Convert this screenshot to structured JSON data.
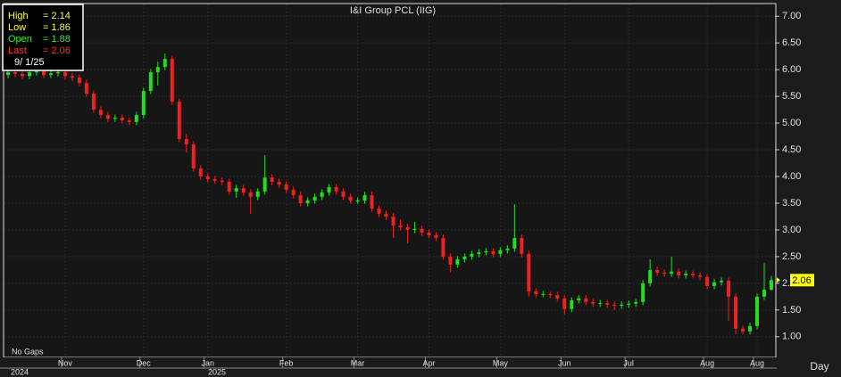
{
  "chart_data": {
    "type": "candlestick",
    "title": "I&I Group PCL (IIG)",
    "categories": [
      null,
      null,
      null,
      null,
      null,
      null,
      null,
      null,
      "Nov",
      null,
      null,
      null,
      null,
      null,
      null,
      null,
      null,
      null,
      null,
      "Dec",
      null,
      null,
      null,
      null,
      null,
      null,
      null,
      null,
      "Jan",
      null,
      null,
      null,
      null,
      null,
      null,
      null,
      null,
      null,
      null,
      "Feb",
      null,
      null,
      null,
      null,
      null,
      null,
      null,
      null,
      null,
      "Mar",
      null,
      null,
      null,
      null,
      null,
      null,
      null,
      null,
      null,
      "Apr",
      null,
      null,
      null,
      null,
      null,
      null,
      null,
      null,
      null,
      "May",
      null,
      null,
      null,
      null,
      null,
      null,
      null,
      null,
      "Jun",
      null,
      null,
      null,
      null,
      null,
      null,
      null,
      null,
      "Jul",
      null,
      null,
      null,
      null,
      null,
      null,
      null,
      null,
      null,
      null,
      "Aug",
      null,
      null,
      null,
      null,
      null,
      null,
      "Aug",
      null,
      null
    ],
    "open": [
      5.9,
      5.95,
      5.92,
      5.88,
      5.95,
      5.97,
      5.9,
      5.93,
      5.95,
      5.88,
      5.85,
      5.75,
      5.55,
      5.25,
      5.15,
      5.08,
      5.1,
      5.05,
      5.02,
      5.15,
      5.6,
      5.95,
      6.05,
      6.2,
      5.4,
      4.7,
      4.6,
      4.15,
      4.0,
      3.95,
      3.92,
      3.9,
      3.72,
      3.78,
      3.7,
      3.62,
      3.72,
      3.98,
      3.9,
      3.85,
      3.75,
      3.65,
      3.5,
      3.55,
      3.62,
      3.7,
      3.8,
      3.72,
      3.62,
      3.55,
      3.55,
      3.65,
      3.4,
      3.3,
      3.25,
      3.08,
      3.05,
      3.0,
      3.02,
      2.95,
      2.9,
      2.85,
      2.5,
      2.35,
      2.45,
      2.5,
      2.55,
      2.58,
      2.6,
      2.55,
      2.62,
      2.65,
      2.85,
      2.55,
      1.85,
      1.8,
      1.8,
      1.78,
      1.72,
      1.52,
      1.68,
      1.72,
      1.65,
      1.62,
      1.63,
      1.6,
      1.58,
      1.6,
      1.62,
      1.65,
      2.0,
      2.25,
      2.2,
      2.18,
      2.22,
      2.15,
      2.18,
      2.15,
      2.12,
      1.95,
      2.02,
      2.05,
      1.75,
      1.15,
      1.1,
      1.2,
      1.75,
      1.88
    ],
    "high": [
      6.01,
      6.01,
      5.98,
      6.01,
      6.03,
      6.03,
      5.99,
      6.01,
      6.01,
      5.94,
      5.91,
      5.81,
      5.61,
      5.31,
      5.21,
      5.16,
      5.16,
      5.11,
      5.21,
      5.66,
      6.01,
      6.15,
      6.3,
      6.26,
      5.46,
      4.8,
      4.66,
      4.21,
      4.06,
      4.01,
      3.98,
      3.96,
      3.84,
      3.84,
      3.76,
      3.78,
      4.4,
      4.04,
      3.96,
      3.91,
      3.81,
      3.71,
      3.61,
      3.68,
      3.76,
      3.86,
      3.86,
      3.78,
      3.68,
      3.61,
      3.71,
      3.71,
      3.46,
      3.36,
      3.31,
      3.2,
      3.11,
      3.15,
      3.08,
      3.01,
      2.96,
      2.91,
      2.56,
      2.51,
      2.56,
      2.61,
      2.64,
      2.66,
      2.66,
      2.68,
      2.71,
      3.48,
      2.91,
      2.61,
      1.91,
      1.86,
      1.84,
      1.84,
      1.78,
      1.74,
      1.78,
      1.78,
      1.71,
      1.69,
      1.69,
      1.66,
      1.66,
      1.68,
      1.71,
      2.06,
      2.45,
      2.31,
      2.26,
      2.5,
      2.28,
      2.24,
      2.24,
      2.21,
      2.18,
      2.08,
      2.11,
      2.11,
      1.81,
      1.21,
      1.26,
      1.81,
      2.38,
      2.14
    ],
    "low": [
      5.84,
      5.86,
      5.82,
      5.82,
      5.89,
      5.84,
      5.84,
      5.87,
      5.82,
      5.79,
      5.69,
      5.49,
      5.19,
      5.09,
      5.02,
      5.02,
      4.99,
      4.96,
      4.96,
      5.09,
      5.54,
      5.7,
      5.99,
      5.34,
      4.64,
      4.45,
      4.09,
      3.94,
      3.89,
      3.86,
      3.84,
      3.66,
      3.6,
      3.64,
      3.3,
      3.56,
      3.66,
      3.84,
      3.79,
      3.69,
      3.59,
      3.44,
      3.44,
      3.49,
      3.56,
      3.64,
      3.66,
      3.56,
      3.49,
      3.49,
      3.49,
      3.34,
      3.24,
      3.19,
      2.85,
      2.99,
      2.75,
      2.94,
      2.89,
      2.84,
      2.79,
      2.44,
      2.2,
      2.29,
      2.39,
      2.44,
      2.49,
      2.52,
      2.49,
      2.49,
      2.56,
      2.59,
      2.49,
      1.75,
      1.74,
      1.74,
      1.72,
      1.66,
      1.42,
      1.46,
      1.62,
      1.59,
      1.56,
      1.56,
      1.54,
      1.5,
      1.52,
      1.54,
      1.56,
      1.59,
      1.94,
      2.14,
      2.12,
      2.12,
      2.09,
      2.09,
      2.09,
      2.06,
      1.89,
      1.89,
      1.96,
      1.3,
      1.05,
      1.04,
      1.04,
      1.14,
      1.69,
      1.86
    ],
    "close": [
      5.95,
      5.92,
      5.88,
      5.95,
      5.97,
      5.9,
      5.93,
      5.95,
      5.88,
      5.85,
      5.75,
      5.55,
      5.25,
      5.15,
      5.08,
      5.1,
      5.05,
      5.02,
      5.15,
      5.6,
      5.95,
      6.05,
      6.2,
      5.4,
      4.7,
      4.6,
      4.15,
      4.0,
      3.95,
      3.92,
      3.9,
      3.72,
      3.78,
      3.7,
      3.62,
      3.72,
      3.98,
      3.9,
      3.85,
      3.75,
      3.65,
      3.5,
      3.55,
      3.62,
      3.7,
      3.8,
      3.72,
      3.62,
      3.55,
      3.55,
      3.65,
      3.4,
      3.3,
      3.25,
      3.08,
      3.05,
      3.0,
      3.02,
      2.95,
      2.9,
      2.85,
      2.5,
      2.35,
      2.45,
      2.5,
      2.55,
      2.58,
      2.6,
      2.55,
      2.62,
      2.65,
      2.85,
      2.55,
      1.85,
      1.8,
      1.8,
      1.78,
      1.72,
      1.52,
      1.68,
      1.72,
      1.65,
      1.62,
      1.63,
      1.6,
      1.58,
      1.6,
      1.62,
      1.65,
      2.0,
      2.25,
      2.2,
      2.18,
      2.22,
      2.15,
      2.18,
      2.15,
      2.12,
      1.95,
      2.02,
      2.05,
      1.75,
      1.15,
      1.1,
      1.2,
      1.75,
      1.88,
      2.06
    ],
    "up_color": "#22dd22",
    "down_color": "#ee2222",
    "ylim": [
      0.63,
      7.22
    ],
    "yticks": [
      {
        "value": 1,
        "label": "1.00"
      },
      {
        "value": 1.5,
        "label": "1.50"
      },
      {
        "value": 2,
        "label": "2.00"
      },
      {
        "value": 2.5,
        "label": "2.50"
      },
      {
        "value": 3,
        "label": "3.00"
      },
      {
        "value": 3.5,
        "label": "3.50"
      },
      {
        "value": 4,
        "label": "4.00"
      },
      {
        "value": 4.5,
        "label": "4.50"
      },
      {
        "value": 5,
        "label": "5.00"
      },
      {
        "value": 5.5,
        "label": "5.50"
      },
      {
        "value": 6,
        "label": "6.00"
      },
      {
        "value": 6.5,
        "label": "6.50"
      },
      {
        "value": 7,
        "label": "7.00"
      }
    ],
    "grid": true,
    "last_marker": 2.06,
    "years": [
      "2024",
      "2025"
    ],
    "gaps_note": "No Gaps",
    "period": "Day",
    "info_box": {
      "date": "9/ 1/25",
      "rows": [
        {
          "name": "High",
          "text": "= 2.14",
          "color": "#ffff33"
        },
        {
          "name": "Low",
          "text": "= 1.86",
          "color": "#ffff33"
        },
        {
          "name": "Open",
          "text": "= 1.88",
          "color": "#33ee33"
        },
        {
          "name": "Last",
          "text": "= 2.06",
          "color": "#ff3333"
        }
      ]
    }
  }
}
